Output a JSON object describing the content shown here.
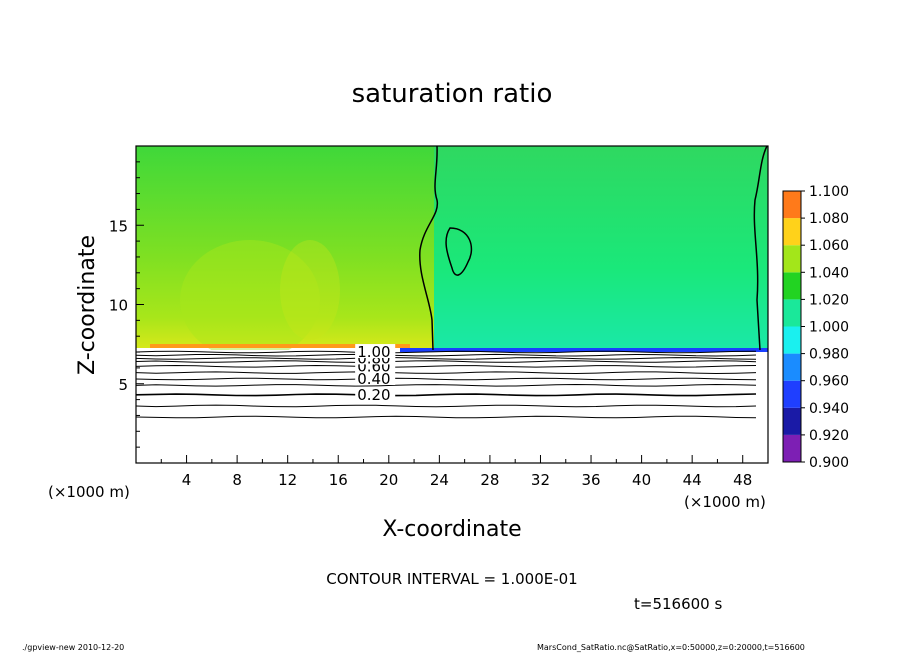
{
  "chart_data": {
    "type": "heatmap",
    "title": "saturation ratio",
    "xlabel": "X-coordinate",
    "ylabel": "Z-coordinate",
    "x_unit_label": "(×1000 m)",
    "z_unit_label": "(×1000 m)",
    "xlim": [
      0,
      50
    ],
    "ylim": [
      0,
      20
    ],
    "x_ticks": [
      4,
      8,
      12,
      16,
      20,
      24,
      28,
      32,
      36,
      40,
      44,
      48
    ],
    "y_ticks": [
      5,
      10,
      15
    ],
    "colorbar": {
      "levels": [
        0.9,
        0.92,
        0.94,
        0.96,
        0.98,
        1.0,
        1.02,
        1.04,
        1.06,
        1.08,
        1.1
      ],
      "labels": [
        "0.900",
        "0.920",
        "0.940",
        "0.960",
        "0.980",
        "1.000",
        "1.020",
        "1.040",
        "1.060",
        "1.080",
        "1.100"
      ],
      "colors": [
        "#7d1fb4",
        "#1a1aa6",
        "#1f3fff",
        "#1a8cff",
        "#1af0ef",
        "#1ae89a",
        "#22d322",
        "#a3e61a",
        "#ffd21a",
        "#ff7a1a",
        "#ff3a3a"
      ]
    },
    "fields": {
      "upper_left_color": "#3dd83a",
      "upper_right_color": "#1ae870",
      "lower_layer_color": "#ffffff",
      "surface_ridge_left_color": "#ff9a1a",
      "surface_ridge_right_color": "#1a3fff"
    },
    "contour_interval_text": "CONTOUR INTERVAL = 1.000E-01",
    "contour_labels": [
      "1.00",
      "0.80",
      "0.60",
      "0.40",
      "0.20"
    ],
    "contour_levels_z": [
      {
        "level": 0.2,
        "z": 4.3
      },
      {
        "level": 0.4,
        "z": 5.3
      },
      {
        "level": 0.6,
        "z": 6.1
      },
      {
        "level": 0.8,
        "z": 6.6
      },
      {
        "level": 1.0,
        "z": 7.0
      }
    ],
    "time_text": "t=516600 s"
  },
  "footer": {
    "left": "./gpview-new   2010-12-20",
    "right": "MarsCond_SatRatio.nc@SatRatio,x=0:50000,z=0:20000,t=516600"
  }
}
